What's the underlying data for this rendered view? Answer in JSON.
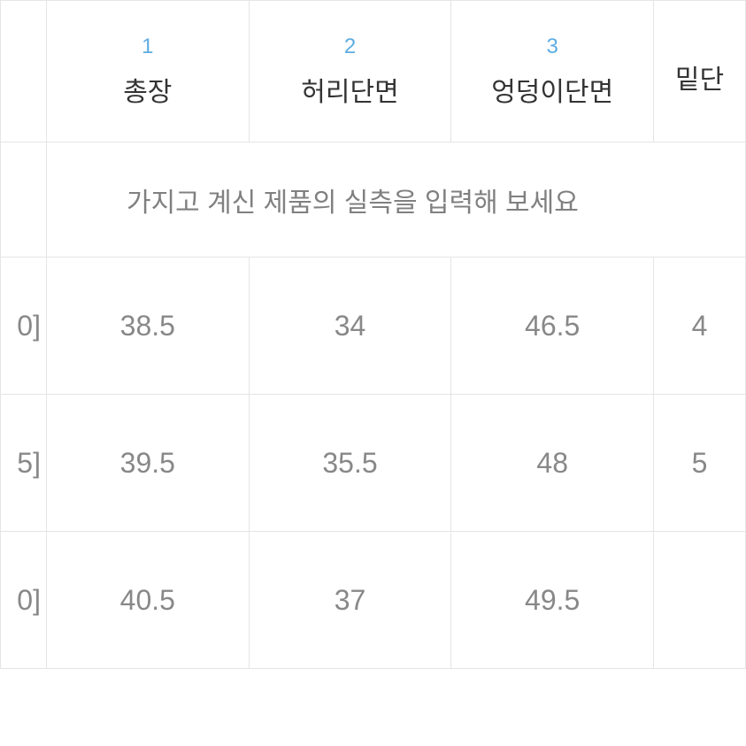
{
  "table": {
    "type": "table",
    "columns": [
      {
        "num": "1",
        "label": "총장"
      },
      {
        "num": "2",
        "label": "허리단면"
      },
      {
        "num": "3",
        "label": "엉덩이단면"
      },
      {
        "num": "",
        "label": "밑단"
      }
    ],
    "placeholder_text": "가지고 계신 제품의 실측을 입력해 보세요",
    "rows": [
      {
        "label": "0]",
        "values": [
          "38.5",
          "34",
          "46.5",
          "4"
        ]
      },
      {
        "label": "5]",
        "values": [
          "39.5",
          "35.5",
          "48",
          "5"
        ]
      },
      {
        "label": "0]",
        "values": [
          "40.5",
          "37",
          "49.5",
          ""
        ]
      }
    ],
    "colors": {
      "border": "#e5e5e5",
      "header_num": "#5dade2",
      "header_label": "#333333",
      "placeholder": "#808080",
      "data_text": "#888888",
      "row_label": "#666666",
      "background": "#ffffff"
    },
    "font_sizes": {
      "col_num": 24,
      "col_label": 30,
      "placeholder": 30,
      "data": 32,
      "row_label": 30
    }
  }
}
